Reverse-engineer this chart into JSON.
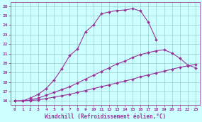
{
  "xlabel": "Windchill (Refroidissement éolien,°C)",
  "xlim": [
    -0.5,
    23.5
  ],
  "ylim": [
    15.6,
    26.4
  ],
  "xticks": [
    0,
    1,
    2,
    3,
    4,
    5,
    6,
    7,
    8,
    9,
    10,
    11,
    12,
    13,
    14,
    15,
    16,
    17,
    18,
    19,
    20,
    21,
    22,
    23
  ],
  "yticks": [
    16,
    17,
    18,
    19,
    20,
    21,
    22,
    23,
    24,
    25,
    26
  ],
  "line_color": "#993399",
  "bg_color": "#ccffff",
  "grid_color": "#99cccc",
  "curves": [
    {
      "x": [
        0,
        1,
        2,
        3,
        4,
        5,
        6,
        7,
        8,
        9,
        10,
        11,
        12,
        13,
        14,
        15,
        16,
        17,
        18
      ],
      "y": [
        16,
        16,
        16.3,
        16.7,
        17.3,
        18.2,
        19.4,
        20.8,
        21.5,
        23.3,
        24.0,
        25.2,
        25.4,
        25.55,
        25.6,
        25.75,
        25.5,
        24.3,
        22.5
      ]
    },
    {
      "x": [
        0,
        1,
        2,
        3,
        4,
        5,
        6,
        7,
        8,
        9,
        10,
        11,
        12,
        13,
        14,
        15,
        16,
        17,
        18,
        19,
        20,
        21,
        22,
        23
      ],
      "y": [
        16,
        16,
        16.1,
        16.3,
        16.6,
        16.9,
        17.2,
        17.5,
        17.9,
        18.3,
        18.7,
        19.1,
        19.5,
        19.9,
        20.2,
        20.6,
        20.9,
        21.1,
        21.3,
        21.4,
        21.05,
        20.5,
        19.8,
        19.5
      ]
    },
    {
      "x": [
        0,
        1,
        2,
        3,
        4,
        5,
        6,
        7,
        8,
        9,
        10,
        11,
        12,
        13,
        14,
        15,
        16,
        17,
        18,
        19,
        20,
        21,
        22,
        23
      ],
      "y": [
        16,
        16,
        16.05,
        16.1,
        16.25,
        16.4,
        16.55,
        16.7,
        16.9,
        17.1,
        17.3,
        17.5,
        17.7,
        17.9,
        18.1,
        18.3,
        18.55,
        18.75,
        18.95,
        19.15,
        19.35,
        19.55,
        19.7,
        19.85
      ]
    }
  ],
  "marker": "D",
  "marker_size": 2.0,
  "linewidth": 0.8,
  "axis_fontsize": 5.5,
  "tick_fontsize": 4.5
}
